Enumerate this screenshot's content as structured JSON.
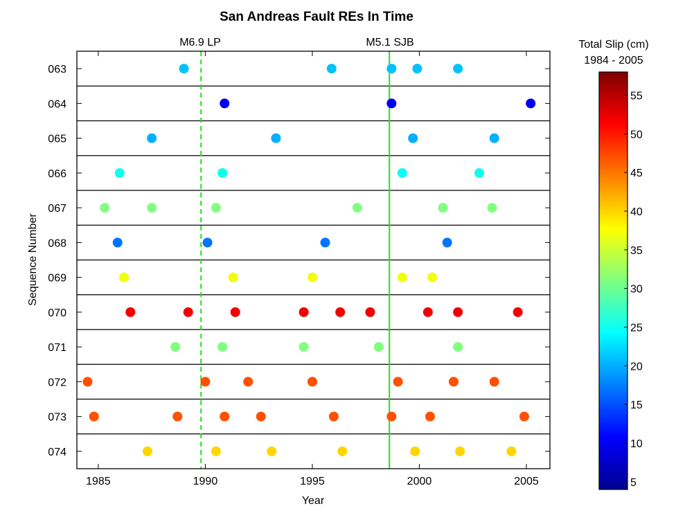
{
  "chart_data": {
    "type": "scatter",
    "title": "San Andreas Fault REs In Time",
    "xlabel": "Year",
    "ylabel": "Sequence Number",
    "xlim": [
      1984.0,
      2006.1
    ],
    "x_ticks": [
      "1985",
      "1990",
      "1995",
      "2000",
      "2005"
    ],
    "grid": false,
    "events": [
      {
        "label": "M6.9 LP",
        "year": 1989.8,
        "line_style": "dashed",
        "color": "#22dd22"
      },
      {
        "label": "M5.1 SJB",
        "year": 1998.6,
        "line_style": "solid",
        "color": "#22dd22"
      }
    ],
    "colorbar": {
      "title": "Total Slip (cm)",
      "subtitle": "1984 - 2005",
      "min": 4.0,
      "max": 58.0,
      "ticks": [
        "5",
        "10",
        "15",
        "20",
        "25",
        "30",
        "35",
        "40",
        "45",
        "50",
        "55"
      ],
      "colormap": "jet"
    },
    "series": [
      {
        "name": "063",
        "slip": 21,
        "years": [
          1989.0,
          1995.9,
          1998.7,
          1999.9,
          2001.8
        ]
      },
      {
        "name": "064",
        "slip": 10,
        "years": [
          1990.9,
          1998.7,
          2005.2
        ]
      },
      {
        "name": "065",
        "slip": 20,
        "years": [
          1987.5,
          1993.3,
          1999.7,
          2003.5
        ]
      },
      {
        "name": "066",
        "slip": 25,
        "years": [
          1986.0,
          1990.8,
          1999.2,
          2002.8
        ]
      },
      {
        "name": "067",
        "slip": 31,
        "years": [
          1985.3,
          1987.5,
          1990.5,
          1997.1,
          2001.1,
          2003.4
        ]
      },
      {
        "name": "068",
        "slip": 17,
        "years": [
          1985.9,
          1990.1,
          1995.6,
          2001.3
        ]
      },
      {
        "name": "069",
        "slip": 37,
        "years": [
          1986.2,
          1991.3,
          1995.0,
          1999.2,
          2000.6
        ]
      },
      {
        "name": "070",
        "slip": 52,
        "years": [
          1986.5,
          1989.2,
          1991.4,
          1994.6,
          1996.3,
          1997.7,
          2000.4,
          2001.8,
          2004.6
        ]
      },
      {
        "name": "071",
        "slip": 31,
        "years": [
          1988.6,
          1990.8,
          1994.6,
          1998.1,
          2001.8
        ]
      },
      {
        "name": "072",
        "slip": 47,
        "years": [
          1984.5,
          1990.0,
          1992.0,
          1995.0,
          1999.0,
          2001.6,
          2003.5
        ]
      },
      {
        "name": "073",
        "slip": 47,
        "years": [
          1984.8,
          1988.7,
          1990.9,
          1992.6,
          1996.0,
          1998.7,
          2000.5,
          2004.9
        ]
      },
      {
        "name": "074",
        "slip": 40,
        "years": [
          1987.3,
          1990.5,
          1993.1,
          1996.4,
          1999.8,
          2001.9,
          2004.3
        ]
      }
    ]
  }
}
